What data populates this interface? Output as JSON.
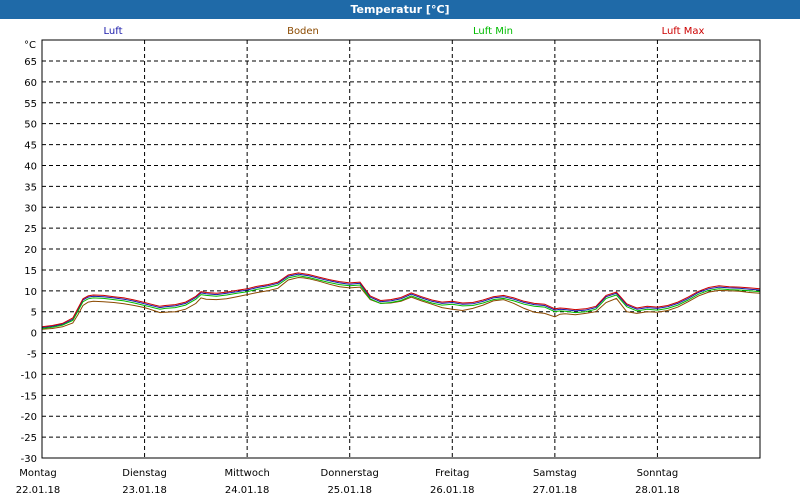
{
  "window": {
    "title": "Temperatur [°C]"
  },
  "chart_data": {
    "type": "line",
    "title": "Temperatur [°C]",
    "ylabel": "°C",
    "xlabel": "",
    "ylim": [
      -30,
      65
    ],
    "yticks": [
      65,
      60,
      55,
      50,
      45,
      40,
      35,
      30,
      25,
      20,
      15,
      10,
      5,
      0,
      -5,
      -10,
      -15,
      -20,
      -25,
      -30
    ],
    "grid": true,
    "legend_position": "top",
    "days": [
      {
        "name": "Montag",
        "date": "22.01.18"
      },
      {
        "name": "Dienstag",
        "date": "23.01.18"
      },
      {
        "name": "Mittwoch",
        "date": "24.01.18"
      },
      {
        "name": "Donnerstag",
        "date": "25.01.18"
      },
      {
        "name": "Freitag",
        "date": "26.01.18"
      },
      {
        "name": "Samstag",
        "date": "27.01.18"
      },
      {
        "name": "Sonntag",
        "date": "28.01.18"
      }
    ],
    "x_range_days": [
      0,
      7
    ],
    "series": [
      {
        "name": "Luft",
        "color": "#1a1aaa",
        "x": [
          0,
          0.1,
          0.2,
          0.3,
          0.35,
          0.4,
          0.45,
          0.5,
          0.6,
          0.7,
          0.8,
          0.9,
          1.0,
          1.05,
          1.1,
          1.15,
          1.2,
          1.3,
          1.4,
          1.5,
          1.55,
          1.6,
          1.7,
          1.8,
          1.9,
          2.0,
          2.1,
          2.2,
          2.3,
          2.4,
          2.5,
          2.55,
          2.6,
          2.7,
          2.8,
          2.9,
          3.0,
          3.1,
          3.2,
          3.3,
          3.4,
          3.5,
          3.6,
          3.7,
          3.8,
          3.9,
          4.0,
          4.1,
          4.2,
          4.3,
          4.4,
          4.5,
          4.6,
          4.7,
          4.8,
          4.9,
          5.0,
          5.05,
          5.1,
          5.2,
          5.3,
          5.4,
          5.5,
          5.6,
          5.7,
          5.8,
          5.9,
          6.0,
          6.1,
          6.2,
          6.3,
          6.4,
          6.5,
          6.6,
          6.7,
          6.8,
          6.9,
          7.0
        ],
        "values": [
          1.2,
          1.5,
          2.0,
          3.2,
          5.5,
          7.8,
          8.5,
          8.7,
          8.6,
          8.3,
          8.0,
          7.5,
          6.9,
          6.6,
          6.3,
          6.0,
          6.2,
          6.4,
          7.0,
          8.4,
          9.5,
          9.3,
          9.1,
          9.4,
          9.8,
          10.2,
          10.8,
          11.2,
          11.8,
          13.5,
          14.0,
          13.8,
          13.6,
          13.0,
          12.4,
          11.9,
          11.6,
          11.8,
          8.5,
          7.4,
          7.6,
          8.1,
          9.2,
          8.3,
          7.5,
          7.0,
          7.2,
          6.8,
          6.9,
          7.5,
          8.3,
          8.6,
          8.0,
          7.2,
          6.7,
          6.5,
          5.4,
          5.6,
          5.5,
          5.2,
          5.4,
          6.0,
          8.6,
          9.4,
          6.6,
          5.6,
          6.0,
          5.8,
          6.2,
          7.0,
          8.2,
          9.6,
          10.5,
          10.9,
          10.7,
          10.6,
          10.4,
          10.2
        ]
      },
      {
        "name": "Boden",
        "color": "#8b4a00",
        "x": [
          0,
          0.1,
          0.2,
          0.3,
          0.35,
          0.4,
          0.45,
          0.5,
          0.6,
          0.7,
          0.8,
          0.9,
          1.0,
          1.05,
          1.1,
          1.15,
          1.2,
          1.3,
          1.4,
          1.5,
          1.55,
          1.6,
          1.7,
          1.8,
          1.9,
          2.0,
          2.1,
          2.2,
          2.3,
          2.4,
          2.5,
          2.55,
          2.6,
          2.7,
          2.8,
          2.9,
          3.0,
          3.1,
          3.2,
          3.3,
          3.4,
          3.5,
          3.6,
          3.7,
          3.8,
          3.9,
          4.0,
          4.1,
          4.2,
          4.3,
          4.4,
          4.5,
          4.6,
          4.7,
          4.8,
          4.9,
          5.0,
          5.05,
          5.1,
          5.2,
          5.3,
          5.4,
          5.5,
          5.6,
          5.7,
          5.8,
          5.9,
          6.0,
          6.1,
          6.2,
          6.3,
          6.4,
          6.5,
          6.6,
          6.7,
          6.8,
          6.9,
          7.0
        ],
        "values": [
          0.8,
          1.0,
          1.4,
          2.3,
          4.3,
          6.5,
          7.3,
          7.5,
          7.4,
          7.2,
          6.9,
          6.5,
          6.0,
          5.6,
          5.2,
          4.8,
          4.9,
          5.0,
          5.6,
          7.0,
          8.3,
          8.0,
          7.9,
          8.1,
          8.6,
          9.1,
          9.6,
          10.0,
          10.6,
          12.6,
          13.2,
          13.1,
          12.9,
          12.3,
          11.6,
          11.0,
          10.7,
          10.9,
          7.9,
          7.0,
          7.1,
          7.5,
          8.5,
          7.6,
          6.8,
          6.0,
          5.6,
          5.3,
          5.8,
          6.6,
          7.6,
          7.9,
          7.0,
          5.8,
          4.9,
          4.6,
          3.8,
          4.4,
          4.5,
          4.3,
          4.6,
          5.0,
          7.2,
          8.2,
          5.0,
          4.6,
          5.0,
          4.9,
          5.3,
          6.1,
          7.4,
          8.8,
          9.7,
          10.1,
          10.0,
          9.9,
          9.6,
          9.4
        ]
      },
      {
        "name": "Luft Min",
        "color": "#00bb00",
        "x": [
          0,
          0.1,
          0.2,
          0.3,
          0.35,
          0.4,
          0.45,
          0.5,
          0.6,
          0.7,
          0.8,
          0.9,
          1.0,
          1.05,
          1.1,
          1.15,
          1.2,
          1.3,
          1.4,
          1.5,
          1.55,
          1.6,
          1.7,
          1.8,
          1.9,
          2.0,
          2.1,
          2.2,
          2.3,
          2.4,
          2.5,
          2.55,
          2.6,
          2.7,
          2.8,
          2.9,
          3.0,
          3.1,
          3.2,
          3.3,
          3.4,
          3.5,
          3.6,
          3.7,
          3.8,
          3.9,
          4.0,
          4.1,
          4.2,
          4.3,
          4.4,
          4.5,
          4.6,
          4.7,
          4.8,
          4.9,
          5.0,
          5.05,
          5.1,
          5.2,
          5.3,
          5.4,
          5.5,
          5.6,
          5.7,
          5.8,
          5.9,
          6.0,
          6.1,
          6.2,
          6.3,
          6.4,
          6.5,
          6.6,
          6.7,
          6.8,
          6.9,
          7.0
        ],
        "values": [
          1.0,
          1.3,
          1.8,
          2.9,
          5.1,
          7.4,
          8.1,
          8.3,
          8.2,
          7.9,
          7.6,
          7.1,
          6.5,
          6.2,
          5.9,
          5.6,
          5.8,
          6.0,
          6.6,
          8.0,
          9.1,
          8.9,
          8.7,
          9.0,
          9.4,
          9.8,
          10.4,
          10.8,
          11.4,
          13.1,
          13.6,
          13.4,
          13.2,
          12.6,
          12.0,
          11.5,
          11.2,
          11.4,
          8.1,
          7.0,
          7.2,
          7.7,
          8.8,
          7.9,
          7.1,
          6.6,
          6.8,
          6.4,
          6.5,
          7.1,
          7.9,
          8.2,
          7.6,
          6.8,
          6.3,
          6.1,
          5.0,
          5.2,
          5.1,
          4.8,
          5.0,
          5.6,
          8.2,
          9.0,
          6.2,
          5.2,
          5.6,
          5.4,
          5.8,
          6.6,
          7.8,
          9.2,
          10.1,
          10.5,
          10.3,
          10.2,
          10.0,
          9.8
        ]
      },
      {
        "name": "Luft Max",
        "color": "#cc0000",
        "x": [
          0,
          0.1,
          0.2,
          0.3,
          0.35,
          0.4,
          0.45,
          0.5,
          0.6,
          0.7,
          0.8,
          0.9,
          1.0,
          1.05,
          1.1,
          1.15,
          1.2,
          1.3,
          1.4,
          1.5,
          1.55,
          1.6,
          1.7,
          1.8,
          1.9,
          2.0,
          2.1,
          2.2,
          2.3,
          2.4,
          2.5,
          2.55,
          2.6,
          2.7,
          2.8,
          2.9,
          3.0,
          3.1,
          3.2,
          3.3,
          3.4,
          3.5,
          3.6,
          3.7,
          3.8,
          3.9,
          4.0,
          4.1,
          4.2,
          4.3,
          4.4,
          4.5,
          4.6,
          4.7,
          4.8,
          4.9,
          5.0,
          5.05,
          5.1,
          5.2,
          5.3,
          5.4,
          5.5,
          5.6,
          5.7,
          5.8,
          5.9,
          6.0,
          6.1,
          6.2,
          6.3,
          6.4,
          6.5,
          6.6,
          6.7,
          6.8,
          6.9,
          7.0
        ],
        "values": [
          1.4,
          1.7,
          2.2,
          3.5,
          5.8,
          8.1,
          8.8,
          9.0,
          8.9,
          8.6,
          8.3,
          7.8,
          7.2,
          6.9,
          6.6,
          6.3,
          6.5,
          6.7,
          7.3,
          8.7,
          9.8,
          9.6,
          9.4,
          9.7,
          10.1,
          10.5,
          11.1,
          11.5,
          12.1,
          13.8,
          14.3,
          14.1,
          13.9,
          13.3,
          12.7,
          12.2,
          11.9,
          12.1,
          8.8,
          7.7,
          7.9,
          8.4,
          9.5,
          8.6,
          7.8,
          7.3,
          7.5,
          7.1,
          7.2,
          7.8,
          8.6,
          8.9,
          8.3,
          7.5,
          7.0,
          6.8,
          5.7,
          5.9,
          5.8,
          5.5,
          5.7,
          6.3,
          8.9,
          9.7,
          6.9,
          5.9,
          6.3,
          6.1,
          6.5,
          7.3,
          8.5,
          9.9,
          10.8,
          11.2,
          11.0,
          10.9,
          10.7,
          10.5
        ]
      }
    ]
  }
}
